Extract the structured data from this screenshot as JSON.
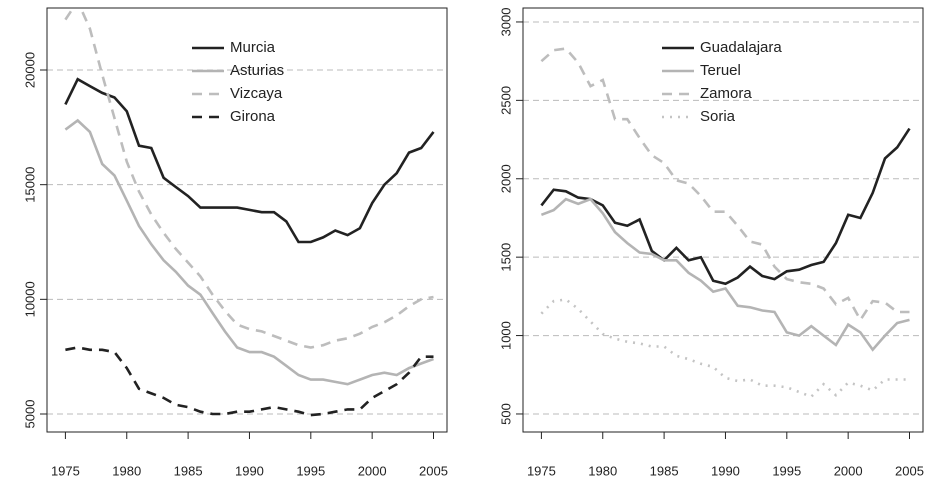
{
  "chart_data": [
    {
      "type": "line",
      "x": [
        1975,
        1976,
        1977,
        1978,
        1979,
        1980,
        1981,
        1982,
        1983,
        1984,
        1985,
        1986,
        1987,
        1988,
        1989,
        1990,
        1991,
        1992,
        1993,
        1994,
        1995,
        1996,
        1997,
        1998,
        1999,
        2000,
        2001,
        2002,
        2003,
        2004,
        2005
      ],
      "xlim": [
        1973.5,
        2006.1
      ],
      "xticks": [
        1975,
        1980,
        1985,
        1990,
        1995,
        2000,
        2005
      ],
      "ylim": [
        4215,
        22704
      ],
      "yticks": [
        5000,
        10000,
        15000,
        20000
      ],
      "grid": true,
      "legend": "top",
      "series": [
        {
          "name": "Murcia",
          "color": "#222222",
          "dash": "solid",
          "values": [
            18500,
            19600,
            19300,
            19000,
            18800,
            18200,
            16700,
            16600,
            15300,
            14900,
            14500,
            14000,
            14000,
            14000,
            14000,
            13900,
            13800,
            13800,
            13400,
            12500,
            12500,
            12700,
            13000,
            12800,
            13100,
            14200,
            15000,
            15500,
            16400,
            16600,
            17300
          ]
        },
        {
          "name": "Asturias",
          "color": "#b4b4b4",
          "dash": "solid",
          "values": [
            17400,
            17800,
            17300,
            15900,
            15400,
            14300,
            13200,
            12400,
            11700,
            11200,
            10600,
            10200,
            9400,
            8600,
            7900,
            7700,
            7700,
            7500,
            7100,
            6700,
            6500,
            6500,
            6400,
            6300,
            6500,
            6700,
            6800,
            6700,
            7000,
            7200,
            7400
          ]
        },
        {
          "name": "Vizcaya",
          "color": "#bdbdbd",
          "dash": "dashed",
          "values": [
            22200,
            23000,
            21800,
            19800,
            17900,
            16000,
            14700,
            13700,
            12900,
            12200,
            11600,
            11000,
            10200,
            9500,
            8900,
            8700,
            8600,
            8400,
            8200,
            8000,
            7900,
            8000,
            8200,
            8300,
            8500,
            8800,
            9000,
            9300,
            9700,
            10000,
            10100
          ]
        },
        {
          "name": "Girona",
          "color": "#222222",
          "dash": "dashed",
          "values": [
            7800,
            7900,
            7800,
            7800,
            7700,
            7000,
            6100,
            5900,
            5700,
            5400,
            5300,
            5100,
            5000,
            5000,
            5100,
            5100,
            5200,
            5300,
            5200,
            5100,
            4950,
            5000,
            5100,
            5200,
            5200,
            5700,
            6000,
            6300,
            6800,
            7500,
            7500
          ]
        }
      ]
    },
    {
      "type": "line",
      "x": [
        1975,
        1976,
        1977,
        1978,
        1979,
        1980,
        1981,
        1982,
        1983,
        1984,
        1985,
        1986,
        1987,
        1988,
        1989,
        1990,
        1991,
        1992,
        1993,
        1994,
        1995,
        1996,
        1997,
        1998,
        1999,
        2000,
        2001,
        2002,
        2003,
        2004,
        2005
      ],
      "xlim": [
        1973.5,
        2006.1
      ],
      "xticks": [
        1975,
        1980,
        1985,
        1990,
        1995,
        2000,
        2005
      ],
      "ylim": [
        385,
        3089
      ],
      "yticks": [
        500,
        1000,
        1500,
        2000,
        2500,
        3000
      ],
      "grid": true,
      "legend": "top",
      "series": [
        {
          "name": "Guadalajara",
          "color": "#222222",
          "dash": "solid",
          "values": [
            1830,
            1930,
            1920,
            1880,
            1870,
            1830,
            1720,
            1700,
            1740,
            1540,
            1480,
            1560,
            1480,
            1500,
            1350,
            1330,
            1370,
            1440,
            1380,
            1360,
            1410,
            1420,
            1450,
            1470,
            1590,
            1770,
            1750,
            1910,
            2130,
            2200,
            2320
          ]
        },
        {
          "name": "Teruel",
          "color": "#b4b4b4",
          "dash": "solid",
          "values": [
            1770,
            1800,
            1870,
            1840,
            1870,
            1780,
            1660,
            1590,
            1530,
            1520,
            1480,
            1480,
            1400,
            1350,
            1280,
            1300,
            1190,
            1180,
            1160,
            1150,
            1020,
            1000,
            1060,
            1000,
            940,
            1070,
            1020,
            910,
            1000,
            1080,
            1100
          ]
        },
        {
          "name": "Zamora",
          "color": "#bdbdbd",
          "dash": "dashed",
          "values": [
            2750,
            2820,
            2830,
            2740,
            2590,
            2630,
            2380,
            2380,
            2260,
            2150,
            2100,
            1990,
            1970,
            1890,
            1790,
            1790,
            1700,
            1600,
            1580,
            1440,
            1360,
            1340,
            1330,
            1300,
            1200,
            1240,
            1100,
            1220,
            1210,
            1150,
            1150
          ]
        },
        {
          "name": "Soria",
          "color": "#c4c4c4",
          "dash": "dotted",
          "values": [
            1140,
            1220,
            1230,
            1170,
            1090,
            1010,
            980,
            960,
            950,
            930,
            930,
            870,
            850,
            820,
            800,
            730,
            710,
            720,
            680,
            680,
            670,
            640,
            610,
            690,
            620,
            700,
            680,
            650,
            720,
            720,
            720
          ]
        }
      ]
    }
  ]
}
